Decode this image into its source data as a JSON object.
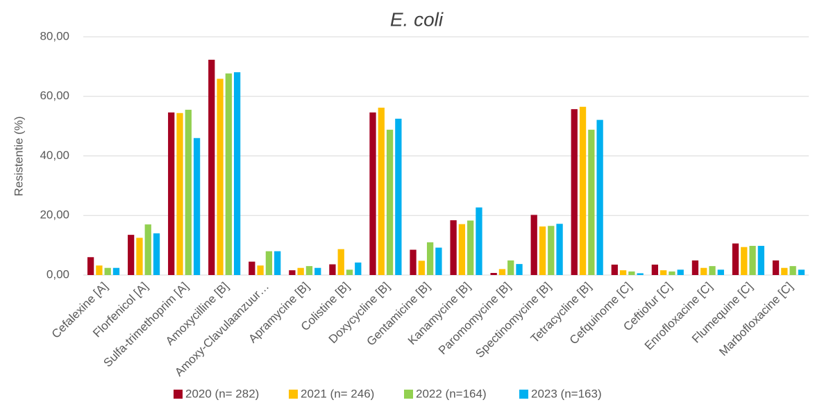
{
  "chart_data": {
    "type": "bar",
    "title": "E. coli",
    "y_label": "Resistentie (%)",
    "categories": [
      "Cefalexine [A]",
      "Florfenicol [A]",
      "Sulfa-trimethoprim [A]",
      "Amoxycilline  [B]",
      "Amoxy-Clavulaanzuur…",
      "Apramycine [B]",
      "Colistine [B]",
      "Doxycycline [B]",
      "Gentamicine [B]",
      "Kanamycine [B]",
      "Paromomycine [B]",
      "Spectinomycine [B]",
      "Tetracycline [B]",
      "Cefquinome [C]",
      "Ceftiofur [C]",
      "Enrofloxacine [C]",
      "Flumequine [C]",
      "Marbofloxacine [C]"
    ],
    "series": [
      {
        "name": "2020 (n= 282)",
        "color": "#a50021",
        "values": [
          6.0,
          13.5,
          54.6,
          72.3,
          4.5,
          1.6,
          3.6,
          54.6,
          8.5,
          18.4,
          0.7,
          20.2,
          55.7,
          3.5,
          3.5,
          4.9,
          10.6,
          4.9
        ]
      },
      {
        "name": "2021 (n= 246)",
        "color": "#ffc000",
        "values": [
          3.2,
          12.5,
          54.4,
          65.9,
          3.2,
          2.4,
          8.7,
          56.2,
          4.8,
          17.1,
          2.0,
          16.3,
          56.5,
          1.6,
          1.6,
          2.4,
          9.4,
          2.4
        ]
      },
      {
        "name": "2022 (n=164)",
        "color": "#92d050",
        "values": [
          2.4,
          17.0,
          55.5,
          67.7,
          8.0,
          3.0,
          1.8,
          48.8,
          11.0,
          18.3,
          4.9,
          16.5,
          48.8,
          1.2,
          1.2,
          3.0,
          9.8,
          3.0
        ]
      },
      {
        "name": "2023 (n=163)",
        "color": "#00b0f0",
        "values": [
          2.4,
          14.0,
          46.0,
          68.1,
          8.0,
          2.4,
          4.2,
          52.5,
          9.2,
          22.7,
          3.7,
          17.2,
          52.1,
          0.6,
          1.8,
          1.8,
          9.8,
          1.8
        ]
      }
    ],
    "ylim": [
      0,
      80
    ],
    "yticks": [
      {
        "value": 0,
        "label": "0,00"
      },
      {
        "value": 20,
        "label": "20,00"
      },
      {
        "value": 40,
        "label": "40,00"
      },
      {
        "value": 60,
        "label": "60,00"
      },
      {
        "value": 80,
        "label": "80,00"
      }
    ],
    "grid": true,
    "legend": "bottom"
  }
}
